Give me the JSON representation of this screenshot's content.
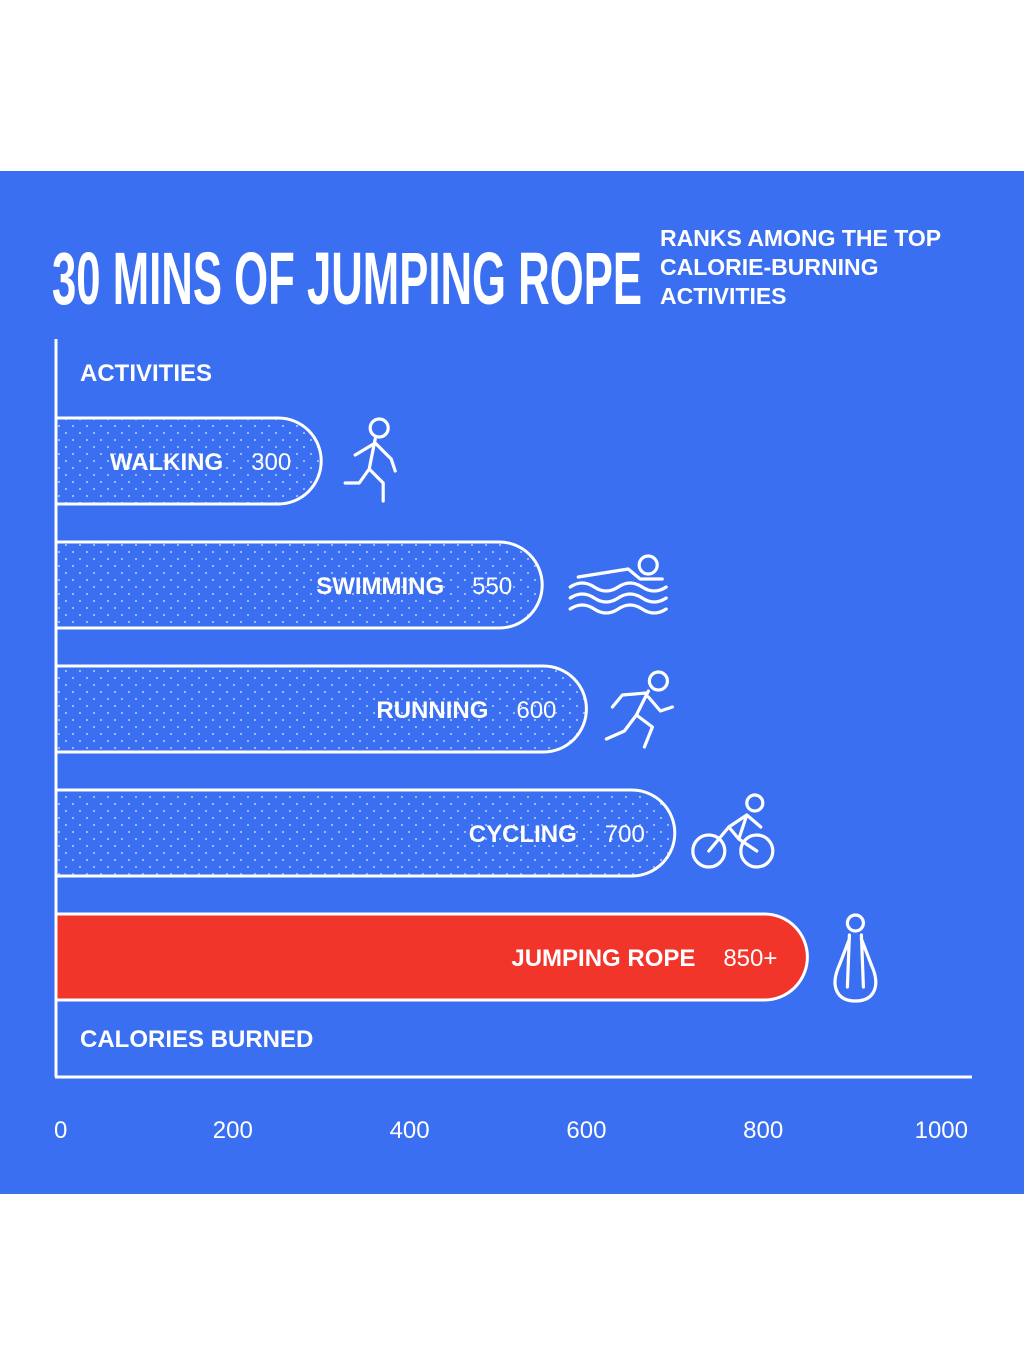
{
  "colors": {
    "background": "#3a6ff2",
    "bar_dotted": "#3a6ff2",
    "bar_highlight": "#f2352a",
    "line": "#ffffff",
    "text": "#ffffff"
  },
  "chart_data": {
    "type": "bar",
    "orientation": "horizontal",
    "title": "30 MINS OF JUMPING ROPE",
    "subtitle": "RANKS AMONG THE TOP CALORIE-BURNING ACTIVITIES",
    "ylabel": "ACTIVITIES",
    "xlabel": "CALORIES BURNED",
    "xlim": [
      0,
      1000
    ],
    "x_ticks": [
      "0",
      "200",
      "400",
      "600",
      "800",
      "1000"
    ],
    "tick_values": [
      0,
      200,
      400,
      600,
      800,
      1000
    ],
    "grid": false,
    "legend": "none",
    "bars": [
      {
        "label": "WALKING",
        "value": 300,
        "value_label": "300",
        "icon": "walking-person-icon",
        "highlight": false
      },
      {
        "label": "SWIMMING",
        "value": 550,
        "value_label": "550",
        "icon": "swimmer-icon",
        "highlight": false
      },
      {
        "label": "RUNNING",
        "value": 600,
        "value_label": "600",
        "icon": "runner-icon",
        "highlight": false
      },
      {
        "label": "CYCLING",
        "value": 700,
        "value_label": "700",
        "icon": "cyclist-icon",
        "highlight": false
      },
      {
        "label": "JUMPING ROPE",
        "value": 850,
        "value_label": "850+",
        "icon": "jump-rope-icon",
        "highlight": true
      }
    ]
  }
}
